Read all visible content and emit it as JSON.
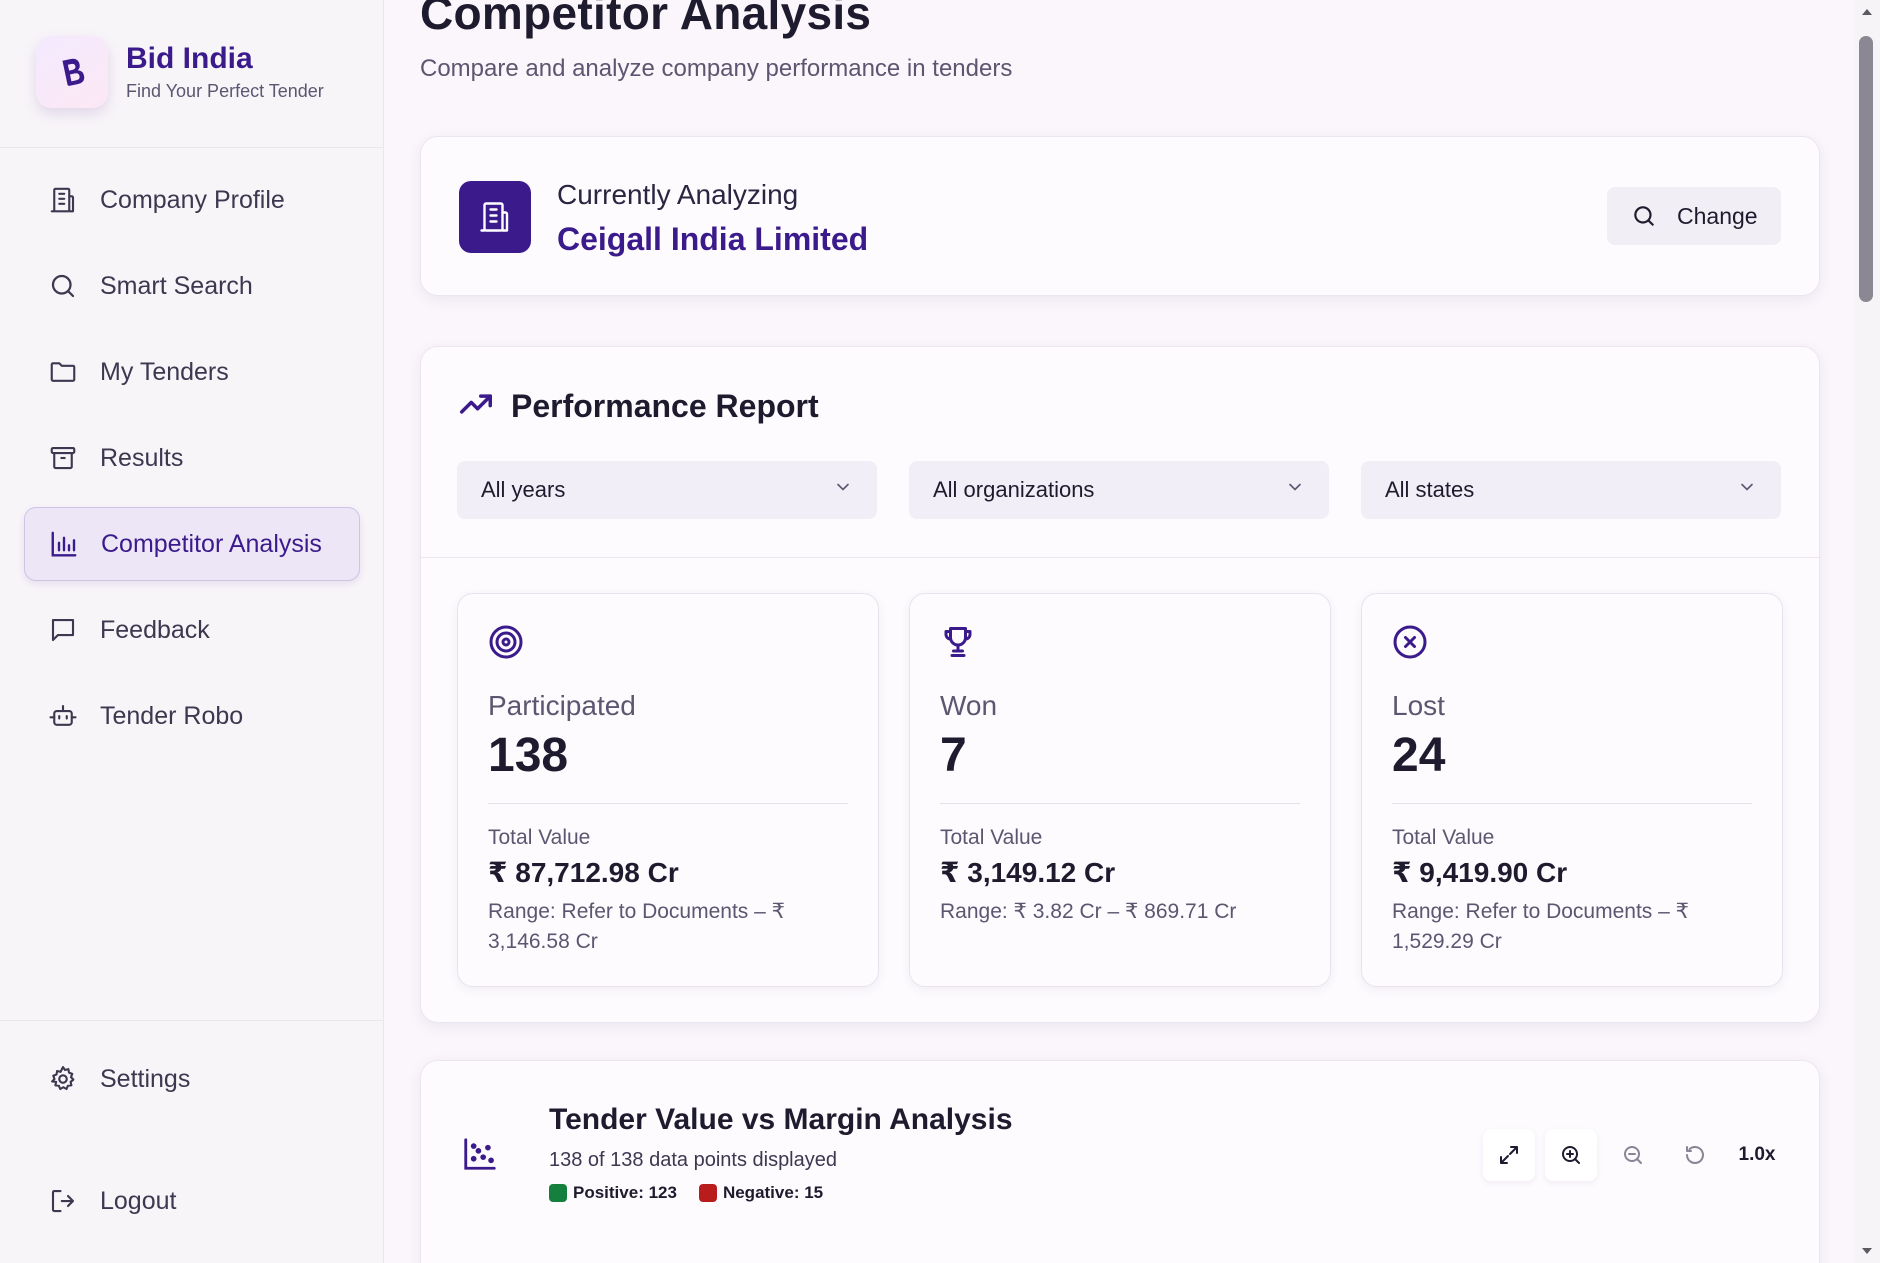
{
  "brand": {
    "title": "Bid India",
    "subtitle": "Find Your Perfect Tender",
    "logo_letter": "B"
  },
  "nav": {
    "items": [
      {
        "label": "Company Profile",
        "icon": "building-icon"
      },
      {
        "label": "Smart Search",
        "icon": "search-icon"
      },
      {
        "label": "My Tenders",
        "icon": "folder-icon"
      },
      {
        "label": "Results",
        "icon": "archive-icon"
      },
      {
        "label": "Competitor Analysis",
        "icon": "bar-chart-icon",
        "active": true
      },
      {
        "label": "Feedback",
        "icon": "message-icon"
      },
      {
        "label": "Tender Robo",
        "icon": "robot-icon"
      }
    ],
    "settings": "Settings",
    "logout": "Logout"
  },
  "page": {
    "title": "Competitor Analysis",
    "subtitle": "Compare and analyze company performance in tenders"
  },
  "analyzing": {
    "label": "Currently Analyzing",
    "company": "Ceigall India Limited",
    "change_label": "Change"
  },
  "report": {
    "title": "Performance Report",
    "filters": {
      "years": "All years",
      "organizations": "All organizations",
      "states": "All states"
    },
    "stats": [
      {
        "label": "Participated",
        "count": "138",
        "total_value_label": "Total Value",
        "total_value": "₹ 87,712.98 Cr",
        "range": "Range: Refer to Documents – ₹ 3,146.58 Cr",
        "icon": "target-icon"
      },
      {
        "label": "Won",
        "count": "7",
        "total_value_label": "Total Value",
        "total_value": "₹ 3,149.12 Cr",
        "range": "Range: ₹ 3.82 Cr – ₹ 869.71 Cr",
        "icon": "trophy-icon"
      },
      {
        "label": "Lost",
        "count": "24",
        "total_value_label": "Total Value",
        "total_value": "₹ 9,419.90 Cr",
        "range": "Range: Refer to Documents – ₹ 1,529.29 Cr",
        "icon": "x-circle-icon"
      }
    ]
  },
  "chart_section": {
    "title": "Tender Value vs Margin Analysis",
    "subtitle": "138 of 138 data points displayed",
    "legend_positive": "Positive: 123",
    "legend_negative": "Negative: 15",
    "zoom_level": "1.0x"
  },
  "colors": {
    "accent": "#3b1b8c",
    "positive": "#15803d",
    "negative": "#b91c1c"
  }
}
